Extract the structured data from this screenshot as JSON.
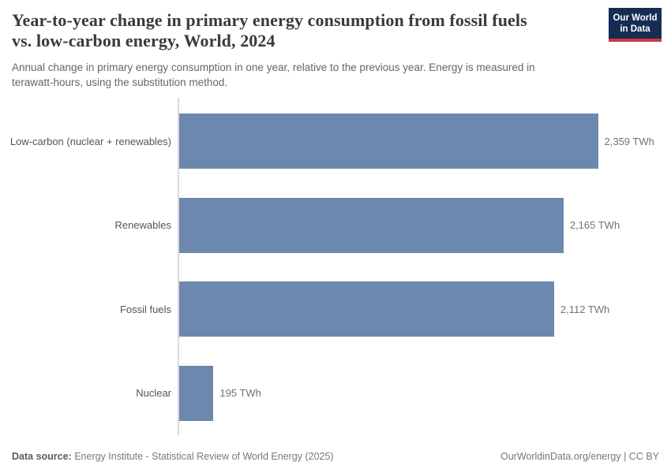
{
  "header": {
    "title_line1": "Year-to-year change in primary energy consumption from fossil fuels",
    "title_line2": "vs. low-carbon energy, World, 2024",
    "subtitle_line1": "Annual change in primary energy consumption in one year, relative to the previous year. Energy is measured in",
    "subtitle_line2": "terawatt-hours, using the substitution method.",
    "logo": {
      "line1": "Our World",
      "line2": "in Data"
    }
  },
  "chart_data": {
    "type": "bar",
    "orientation": "horizontal",
    "title": "Year-to-year change in primary energy consumption from fossil fuels vs. low-carbon energy, World, 2024",
    "subtitle": "Annual change in primary energy consumption in one year, relative to the previous year. Energy is measured in terawatt-hours, using the substitution method.",
    "categories": [
      "Low-carbon (nuclear + renewables)",
      "Renewables",
      "Fossil fuels",
      "Nuclear"
    ],
    "values": [
      2359,
      2165,
      2112,
      195
    ],
    "value_labels": [
      "2,359 TWh",
      "2,165 TWh",
      "2,112 TWh",
      "195 TWh"
    ],
    "unit": "TWh",
    "xlim": [
      0,
      2359
    ],
    "grid": false,
    "legend": "none"
  },
  "colors": {
    "bar": "#6c88ae",
    "axis_line": "#dadada",
    "logo_bg": "#152d52",
    "logo_red": "#d0393e"
  },
  "footer": {
    "datasource_label": "Data source:",
    "datasource_text": " Energy Institute - Statistical Review of World Energy (2025)",
    "credit": "OurWorldinData.org/energy | CC BY"
  }
}
